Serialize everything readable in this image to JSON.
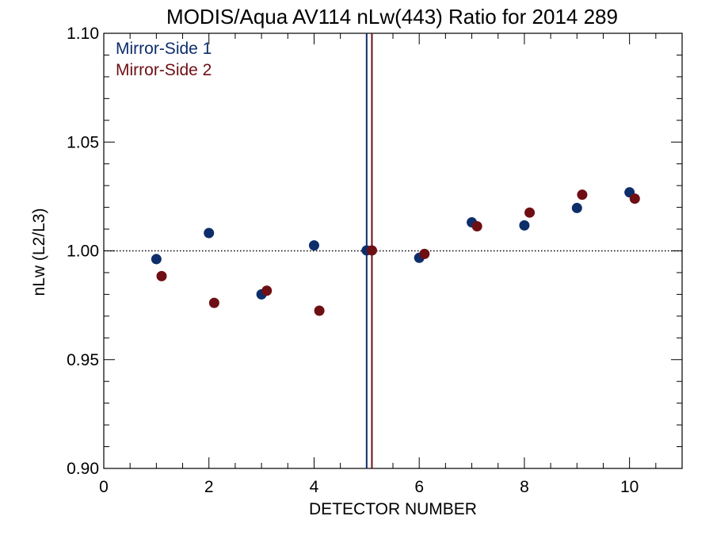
{
  "chart_data": {
    "type": "scatter",
    "title": "MODIS/Aqua AV114 nLw(443) Ratio for 2014 289",
    "xlabel": "DETECTOR NUMBER",
    "ylabel": "nLw (L2/L3)",
    "xlim": [
      0,
      11
    ],
    "ylim": [
      0.9,
      1.1
    ],
    "x_ticks": [
      "0",
      "2",
      "4",
      "6",
      "8",
      "10"
    ],
    "y_ticks": [
      "0.90",
      "0.95",
      "1.00",
      "1.05",
      "1.10"
    ],
    "reference_line_y": 1.0,
    "grid": false,
    "legend_position": "top-left",
    "vertical_lines": [
      {
        "x": 5.0,
        "series": "Mirror-Side 1"
      },
      {
        "x": 5.1,
        "series": "Mirror-Side 2"
      }
    ],
    "series": [
      {
        "name": "Mirror-Side 1",
        "color": "#0d2e6b",
        "points": [
          {
            "x": 1,
            "y": 0.9962
          },
          {
            "x": 2,
            "y": 1.0082
          },
          {
            "x": 3,
            "y": 0.98
          },
          {
            "x": 4,
            "y": 1.0025
          },
          {
            "x": 5,
            "y": 1.0002
          },
          {
            "x": 6,
            "y": 0.9968
          },
          {
            "x": 7,
            "y": 1.0131
          },
          {
            "x": 8,
            "y": 1.0117
          },
          {
            "x": 9,
            "y": 1.0197
          },
          {
            "x": 10,
            "y": 1.0269
          }
        ]
      },
      {
        "name": "Mirror-Side 2",
        "color": "#6e0f14",
        "points": [
          {
            "x": 1.1,
            "y": 0.9884
          },
          {
            "x": 2.1,
            "y": 0.9761
          },
          {
            "x": 3.1,
            "y": 0.9817
          },
          {
            "x": 4.1,
            "y": 0.9725
          },
          {
            "x": 5.1,
            "y": 1.0002
          },
          {
            "x": 6.1,
            "y": 0.9986
          },
          {
            "x": 7.1,
            "y": 1.0113
          },
          {
            "x": 8.1,
            "y": 1.0176
          },
          {
            "x": 9.1,
            "y": 1.0258
          },
          {
            "x": 10.1,
            "y": 1.024
          }
        ]
      }
    ]
  }
}
